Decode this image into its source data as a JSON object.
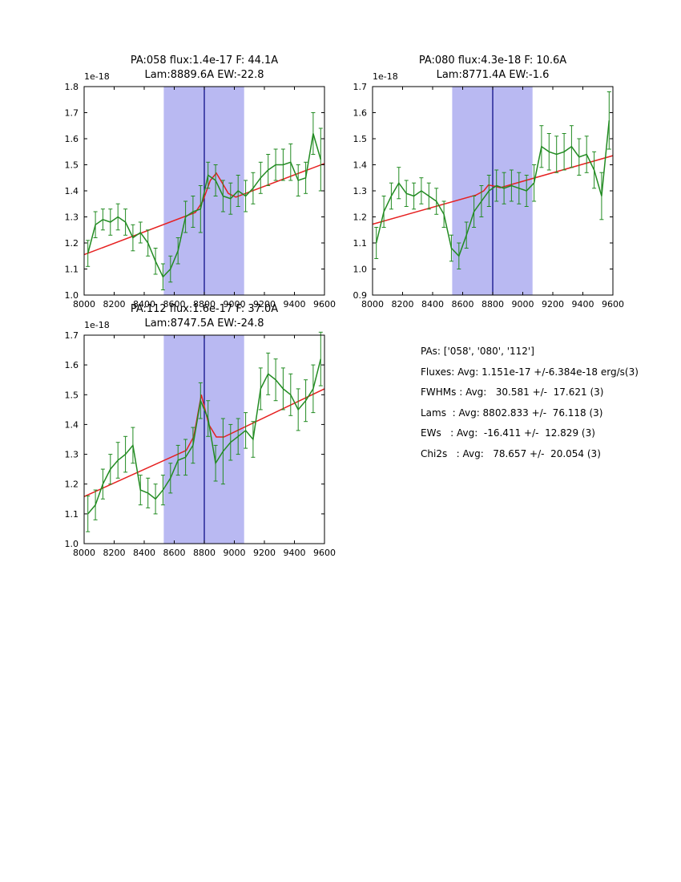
{
  "colors": {
    "band": "#b9b9f2",
    "vline": "#000080",
    "frame": "#000000",
    "spectrum": "#228b22",
    "fit": "#e62020"
  },
  "stats": {
    "lines": [
      "PAs: ['058', '080', '112']",
      "Fluxes: Avg: 1.151e-17 +/-6.384e-18 erg/s(3)",
      "FWHMs : Avg:   30.581 +/-  17.621 (3)",
      "Lams  : Avg: 8802.833 +/-  76.118 (3)",
      "EWs   : Avg:  -16.411 +/-  12.829 (3)",
      "Chi2s   : Avg:   78.657 +/-  20.054 (3)"
    ]
  },
  "chart_data": [
    {
      "type": "line",
      "title": "PA:058 flux:1.4e-17 F: 44.1A",
      "subtitle": "Lam:8889.6A EW:-22.8",
      "offset_text": "1e-18",
      "xlim": [
        8000,
        9600
      ],
      "ylim": [
        1.0,
        1.8
      ],
      "xticks": [
        8000,
        8200,
        8400,
        8600,
        8800,
        9000,
        9200,
        9400,
        9600
      ],
      "yticks": [
        1.0,
        1.1,
        1.2,
        1.3,
        1.4,
        1.5,
        1.6,
        1.7,
        1.8
      ],
      "band": [
        8530,
        9065
      ],
      "vline": 8800,
      "series": [
        {
          "name": "fit",
          "x": [
            8000,
            8740,
            8790,
            8840,
            8880,
            8920,
            8960,
            9010,
            9600
          ],
          "y": [
            1.155,
            1.317,
            1.36,
            1.44,
            1.468,
            1.43,
            1.39,
            1.376,
            1.505
          ]
        },
        {
          "name": "spectrum",
          "x": [
            8025,
            8075,
            8125,
            8175,
            8225,
            8275,
            8325,
            8375,
            8425,
            8475,
            8525,
            8575,
            8625,
            8675,
            8725,
            8775,
            8825,
            8875,
            8925,
            8975,
            9025,
            9075,
            9125,
            9175,
            9225,
            9275,
            9325,
            9375,
            9425,
            9475,
            9525,
            9575
          ],
          "y": [
            1.16,
            1.27,
            1.29,
            1.28,
            1.3,
            1.28,
            1.22,
            1.24,
            1.2,
            1.13,
            1.07,
            1.1,
            1.17,
            1.3,
            1.32,
            1.33,
            1.46,
            1.44,
            1.38,
            1.37,
            1.4,
            1.38,
            1.41,
            1.45,
            1.48,
            1.5,
            1.5,
            1.51,
            1.44,
            1.45,
            1.62,
            1.52
          ],
          "yerr": [
            0.05,
            0.05,
            0.04,
            0.05,
            0.05,
            0.05,
            0.05,
            0.04,
            0.05,
            0.05,
            0.05,
            0.05,
            0.05,
            0.06,
            0.06,
            0.09,
            0.05,
            0.06,
            0.06,
            0.06,
            0.06,
            0.06,
            0.06,
            0.06,
            0.06,
            0.06,
            0.06,
            0.07,
            0.06,
            0.06,
            0.08,
            0.12
          ]
        }
      ]
    },
    {
      "type": "line",
      "title": "PA:080 flux:4.3e-18 F: 10.6A",
      "subtitle": "Lam:8771.4A EW:-1.6",
      "offset_text": "1e-18",
      "xlim": [
        8000,
        9600
      ],
      "ylim": [
        0.9,
        1.7
      ],
      "xticks": [
        8000,
        8200,
        8400,
        8600,
        8800,
        9000,
        9200,
        9400,
        9600
      ],
      "yticks": [
        0.9,
        1.0,
        1.1,
        1.2,
        1.3,
        1.4,
        1.5,
        1.6,
        1.7
      ],
      "band": [
        8530,
        9065
      ],
      "vline": 8800,
      "series": [
        {
          "name": "fit",
          "x": [
            8000,
            8690,
            8740,
            8771,
            8810,
            8850,
            9600
          ],
          "y": [
            1.172,
            1.284,
            1.3,
            1.322,
            1.318,
            1.312,
            1.435
          ]
        },
        {
          "name": "spectrum",
          "x": [
            8025,
            8075,
            8125,
            8175,
            8225,
            8275,
            8325,
            8375,
            8425,
            8475,
            8525,
            8575,
            8625,
            8675,
            8725,
            8775,
            8825,
            8875,
            8925,
            8975,
            9025,
            9075,
            9125,
            9175,
            9225,
            9275,
            9325,
            9375,
            9425,
            9475,
            9525,
            9575
          ],
          "y": [
            1.1,
            1.22,
            1.28,
            1.33,
            1.29,
            1.28,
            1.3,
            1.28,
            1.26,
            1.21,
            1.08,
            1.05,
            1.13,
            1.22,
            1.26,
            1.3,
            1.32,
            1.31,
            1.32,
            1.31,
            1.3,
            1.33,
            1.47,
            1.45,
            1.44,
            1.45,
            1.47,
            1.43,
            1.44,
            1.38,
            1.28,
            1.57
          ],
          "yerr": [
            0.06,
            0.06,
            0.05,
            0.06,
            0.05,
            0.05,
            0.05,
            0.05,
            0.05,
            0.05,
            0.05,
            0.05,
            0.05,
            0.06,
            0.06,
            0.06,
            0.06,
            0.06,
            0.06,
            0.06,
            0.06,
            0.07,
            0.08,
            0.07,
            0.07,
            0.07,
            0.08,
            0.07,
            0.07,
            0.07,
            0.09,
            0.11
          ]
        }
      ]
    },
    {
      "type": "line",
      "title": "PA:112 flux:1.6e-17 F: 37.0A",
      "subtitle": "Lam:8747.5A EW:-24.8",
      "offset_text": "1e-18",
      "xlim": [
        8000,
        9600
      ],
      "ylim": [
        1.0,
        1.7
      ],
      "xticks": [
        8000,
        8200,
        8400,
        8600,
        8800,
        9000,
        9200,
        9400,
        9600
      ],
      "yticks": [
        1.0,
        1.1,
        1.2,
        1.3,
        1.4,
        1.5,
        1.6,
        1.7
      ],
      "band": [
        8530,
        9065
      ],
      "vline": 8800,
      "series": [
        {
          "name": "fit",
          "x": [
            8000,
            8680,
            8730,
            8780,
            8830,
            8880,
            8930,
            9600
          ],
          "y": [
            1.158,
            1.313,
            1.36,
            1.5,
            1.4,
            1.358,
            1.358,
            1.52
          ]
        },
        {
          "name": "spectrum",
          "x": [
            8025,
            8075,
            8125,
            8175,
            8225,
            8275,
            8325,
            8375,
            8425,
            8475,
            8525,
            8575,
            8625,
            8675,
            8725,
            8775,
            8825,
            8875,
            8925,
            8975,
            9025,
            9075,
            9125,
            9175,
            9225,
            9275,
            9325,
            9375,
            9425,
            9475,
            9525,
            9575
          ],
          "y": [
            1.1,
            1.13,
            1.2,
            1.25,
            1.28,
            1.3,
            1.33,
            1.18,
            1.17,
            1.15,
            1.18,
            1.22,
            1.28,
            1.29,
            1.33,
            1.48,
            1.42,
            1.27,
            1.31,
            1.34,
            1.36,
            1.38,
            1.35,
            1.52,
            1.57,
            1.55,
            1.52,
            1.5,
            1.45,
            1.48,
            1.52,
            1.62
          ],
          "yerr": [
            0.06,
            0.05,
            0.05,
            0.05,
            0.06,
            0.06,
            0.06,
            0.05,
            0.05,
            0.05,
            0.05,
            0.05,
            0.05,
            0.06,
            0.06,
            0.06,
            0.06,
            0.06,
            0.11,
            0.06,
            0.06,
            0.06,
            0.06,
            0.07,
            0.07,
            0.07,
            0.07,
            0.07,
            0.07,
            0.07,
            0.08,
            0.09
          ]
        }
      ]
    }
  ]
}
